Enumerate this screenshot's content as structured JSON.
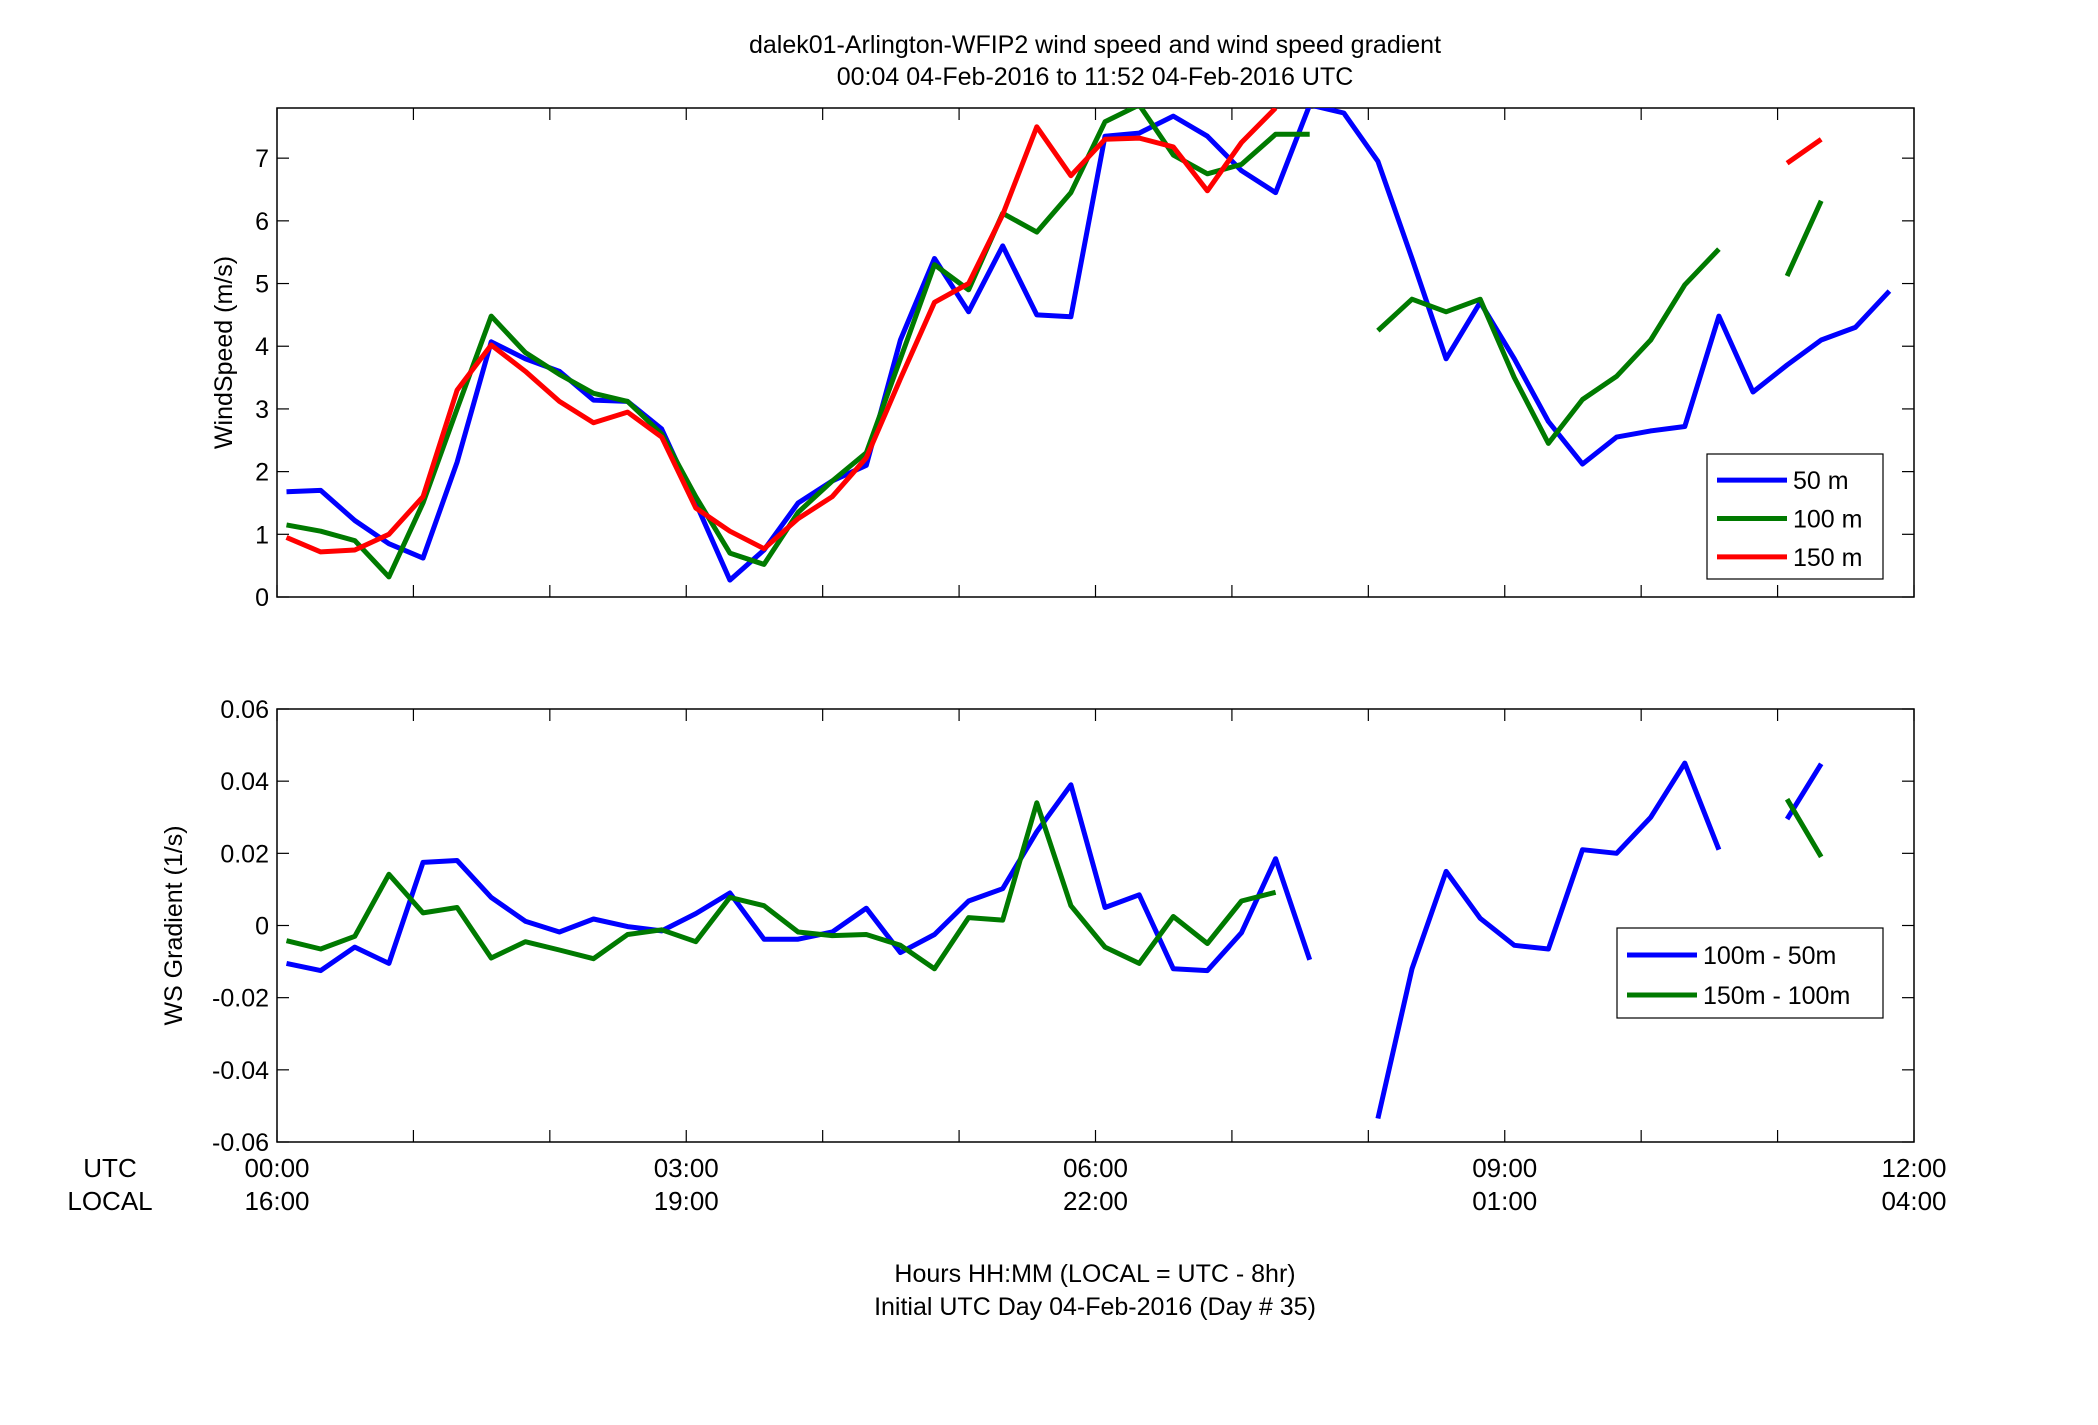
{
  "figure": {
    "title_line1": "dalek01-Arlington-WFIP2  wind speed and wind speed gradient",
    "title_line2": "00:04 04-Feb-2016 to 11:52 04-Feb-2016  UTC",
    "xlabel_line1": "Hours HH:MM  (LOCAL = UTC - 8hr)",
    "xlabel_line2": "Initial UTC Day 04-Feb-2016 (Day # 35)",
    "utc_label": "UTC",
    "local_label": "LOCAL",
    "utc_ticks": [
      "00:00",
      "03:00",
      "06:00",
      "09:00",
      "12:00"
    ],
    "local_ticks": [
      "16:00",
      "19:00",
      "22:00",
      "01:00",
      "04:00"
    ]
  },
  "chart_data": [
    {
      "type": "line",
      "ylabel": "WindSpeed (m/s)",
      "xlim": [
        0,
        12
      ],
      "ylim": [
        0,
        7.8
      ],
      "yticks": [
        0,
        1,
        2,
        3,
        4,
        5,
        6,
        7
      ],
      "ytick_labels": [
        "0",
        "1",
        "2",
        "3",
        "4",
        "5",
        "6",
        "7"
      ],
      "legend_position": "lower-right",
      "series": [
        {
          "name": "50 m",
          "color": "#0000ff",
          "points": [
            [
              0.07,
              1.68
            ],
            [
              0.32,
              1.7
            ],
            [
              0.57,
              1.22
            ],
            [
              0.82,
              0.85
            ],
            [
              1.07,
              0.62
            ],
            [
              1.32,
              2.15
            ],
            [
              1.57,
              4.07
            ],
            [
              1.82,
              3.8
            ],
            [
              2.07,
              3.6
            ],
            [
              2.32,
              3.14
            ],
            [
              2.57,
              3.12
            ],
            [
              2.82,
              2.68
            ],
            [
              3.07,
              1.5
            ],
            [
              3.32,
              0.27
            ],
            [
              3.57,
              0.75
            ],
            [
              3.82,
              1.5
            ],
            [
              4.07,
              1.85
            ],
            [
              4.32,
              2.1
            ],
            [
              4.57,
              4.1
            ],
            [
              4.82,
              5.4
            ],
            [
              5.07,
              4.55
            ],
            [
              5.32,
              5.6
            ],
            [
              5.57,
              4.5
            ],
            [
              5.82,
              4.47
            ],
            [
              6.07,
              7.35
            ],
            [
              6.32,
              7.4
            ],
            [
              6.57,
              7.67
            ],
            [
              6.82,
              7.35
            ],
            [
              7.07,
              6.8
            ],
            [
              7.32,
              6.45
            ],
            [
              7.57,
              7.85
            ],
            [
              7.82,
              7.72
            ],
            [
              8.07,
              6.95
            ],
            [
              8.32,
              5.4
            ],
            [
              8.57,
              3.8
            ],
            [
              8.82,
              4.7
            ],
            [
              9.07,
              3.8
            ],
            [
              9.32,
              2.8
            ],
            [
              9.57,
              2.12
            ],
            [
              9.82,
              2.55
            ],
            [
              10.07,
              2.65
            ],
            [
              10.32,
              2.72
            ],
            [
              10.57,
              4.48
            ],
            [
              10.82,
              3.27
            ],
            [
              11.07,
              3.7
            ],
            [
              11.32,
              4.1
            ],
            [
              11.57,
              4.3
            ],
            [
              11.82,
              4.88
            ]
          ]
        },
        {
          "name": "100 m",
          "color": "#007a00",
          "points": [
            [
              0.07,
              1.15
            ],
            [
              0.32,
              1.05
            ],
            [
              0.57,
              0.9
            ],
            [
              0.82,
              0.32
            ],
            [
              1.07,
              1.5
            ],
            [
              1.32,
              3.0
            ],
            [
              1.57,
              4.48
            ],
            [
              1.82,
              3.9
            ],
            [
              2.07,
              3.55
            ],
            [
              2.32,
              3.25
            ],
            [
              2.57,
              3.12
            ],
            [
              2.82,
              2.6
            ],
            [
              3.07,
              1.6
            ],
            [
              3.32,
              0.7
            ],
            [
              3.57,
              0.52
            ],
            [
              3.82,
              1.35
            ],
            [
              4.07,
              1.85
            ],
            [
              4.32,
              2.3
            ],
            [
              4.57,
              3.8
            ],
            [
              4.82,
              5.3
            ],
            [
              5.07,
              4.9
            ],
            [
              5.32,
              6.12
            ],
            [
              5.57,
              5.82
            ],
            [
              5.82,
              6.45
            ],
            [
              6.07,
              7.58
            ],
            [
              6.32,
              7.85
            ],
            [
              6.57,
              7.05
            ],
            [
              6.82,
              6.75
            ],
            [
              7.07,
              6.9
            ],
            [
              7.32,
              7.38
            ],
            [
              7.57,
              7.38
            ],
            [
              7.82,
              null
            ],
            [
              8.07,
              4.25
            ],
            [
              8.32,
              4.75
            ],
            [
              8.57,
              4.55
            ],
            [
              8.82,
              4.75
            ],
            [
              9.07,
              3.5
            ],
            [
              9.32,
              2.45
            ],
            [
              9.57,
              3.15
            ],
            [
              9.82,
              3.52
            ],
            [
              10.07,
              4.1
            ],
            [
              10.32,
              4.98
            ],
            [
              10.57,
              5.55
            ],
            [
              10.82,
              null
            ],
            [
              11.07,
              5.12
            ],
            [
              11.32,
              6.32
            ]
          ]
        },
        {
          "name": "150 m",
          "color": "#ff0000",
          "points": [
            [
              0.07,
              0.95
            ],
            [
              0.32,
              0.72
            ],
            [
              0.57,
              0.75
            ],
            [
              0.82,
              1.0
            ],
            [
              1.07,
              1.6
            ],
            [
              1.32,
              3.3
            ],
            [
              1.57,
              4.02
            ],
            [
              1.82,
              3.6
            ],
            [
              2.07,
              3.12
            ],
            [
              2.32,
              2.78
            ],
            [
              2.57,
              2.95
            ],
            [
              2.82,
              2.55
            ],
            [
              3.07,
              1.42
            ],
            [
              3.32,
              1.05
            ],
            [
              3.57,
              0.77
            ],
            [
              3.82,
              1.25
            ],
            [
              4.07,
              1.6
            ],
            [
              4.32,
              2.22
            ],
            [
              4.57,
              3.48
            ],
            [
              4.82,
              4.7
            ],
            [
              5.07,
              5.0
            ],
            [
              5.32,
              6.1
            ],
            [
              5.57,
              7.5
            ],
            [
              5.82,
              6.72
            ],
            [
              6.07,
              7.3
            ],
            [
              6.32,
              7.32
            ],
            [
              6.57,
              7.18
            ],
            [
              6.82,
              6.48
            ],
            [
              7.07,
              7.25
            ],
            [
              7.32,
              7.8
            ],
            [
              7.57,
              null
            ],
            [
              7.82,
              null
            ],
            [
              8.07,
              null
            ],
            [
              8.32,
              null
            ],
            [
              8.57,
              null
            ],
            [
              8.82,
              null
            ],
            [
              9.07,
              null
            ],
            [
              9.32,
              null
            ],
            [
              9.57,
              null
            ],
            [
              9.82,
              null
            ],
            [
              10.07,
              null
            ],
            [
              10.32,
              null
            ],
            [
              10.57,
              null
            ],
            [
              10.82,
              null
            ],
            [
              11.07,
              6.92
            ],
            [
              11.32,
              7.3
            ]
          ]
        }
      ]
    },
    {
      "type": "line",
      "ylabel": "WS Gradient (1/s)",
      "xlim": [
        0,
        12
      ],
      "ylim": [
        -0.06,
        0.06
      ],
      "yticks": [
        -0.06,
        -0.04,
        -0.02,
        0,
        0.02,
        0.04,
        0.06
      ],
      "ytick_labels": [
        "-0.06",
        "-0.04",
        "-0.02",
        "0",
        "0.02",
        "0.04",
        "0.06"
      ],
      "legend_position": "lower-right",
      "series": [
        {
          "name": "100m - 50m",
          "color": "#0000ff",
          "points": [
            [
              0.07,
              -0.0105
            ],
            [
              0.32,
              -0.0125
            ],
            [
              0.57,
              -0.006
            ],
            [
              0.82,
              -0.0105
            ],
            [
              1.07,
              0.0175
            ],
            [
              1.32,
              0.018
            ],
            [
              1.57,
              0.0078
            ],
            [
              1.82,
              0.0012
            ],
            [
              2.07,
              -0.0018
            ],
            [
              2.32,
              0.0018
            ],
            [
              2.57,
              -0.0003
            ],
            [
              2.82,
              -0.0015
            ],
            [
              3.07,
              0.0033
            ],
            [
              3.32,
              0.009
            ],
            [
              3.57,
              -0.0038
            ],
            [
              3.82,
              -0.0038
            ],
            [
              4.07,
              -0.0018
            ],
            [
              4.32,
              0.0048
            ],
            [
              4.57,
              -0.0075
            ],
            [
              4.82,
              -0.0025
            ],
            [
              5.07,
              0.0068
            ],
            [
              5.32,
              0.0102
            ],
            [
              5.57,
              0.026
            ],
            [
              5.82,
              0.039
            ],
            [
              6.07,
              0.005
            ],
            [
              6.32,
              0.0085
            ],
            [
              6.57,
              -0.012
            ],
            [
              6.82,
              -0.0125
            ],
            [
              7.07,
              -0.002
            ],
            [
              7.32,
              0.0185
            ],
            [
              7.57,
              -0.0095
            ],
            [
              7.82,
              null
            ],
            [
              8.07,
              -0.0535
            ],
            [
              8.32,
              -0.012
            ],
            [
              8.57,
              0.015
            ],
            [
              8.82,
              0.002
            ],
            [
              9.07,
              -0.0055
            ],
            [
              9.32,
              -0.0065
            ],
            [
              9.57,
              0.021
            ],
            [
              9.82,
              0.02
            ],
            [
              10.07,
              0.03
            ],
            [
              10.32,
              0.045
            ],
            [
              10.57,
              0.021
            ],
            [
              10.82,
              null
            ],
            [
              11.07,
              0.0295
            ],
            [
              11.32,
              0.0448
            ]
          ]
        },
        {
          "name": "150m - 100m",
          "color": "#007a00",
          "points": [
            [
              0.07,
              -0.0042
            ],
            [
              0.32,
              -0.0065
            ],
            [
              0.57,
              -0.003
            ],
            [
              0.82,
              0.0142
            ],
            [
              1.07,
              0.0035
            ],
            [
              1.32,
              0.005
            ],
            [
              1.57,
              -0.009
            ],
            [
              1.82,
              -0.0045
            ],
            [
              2.07,
              -0.0068
            ],
            [
              2.32,
              -0.0092
            ],
            [
              2.57,
              -0.0025
            ],
            [
              2.82,
              -0.0012
            ],
            [
              3.07,
              -0.0045
            ],
            [
              3.32,
              0.0078
            ],
            [
              3.57,
              0.0055
            ],
            [
              3.82,
              -0.0018
            ],
            [
              4.07,
              -0.0028
            ],
            [
              4.32,
              -0.0025
            ],
            [
              4.57,
              -0.0055
            ],
            [
              4.82,
              -0.012
            ],
            [
              5.07,
              0.0022
            ],
            [
              5.32,
              0.0015
            ],
            [
              5.57,
              0.034
            ],
            [
              5.82,
              0.0055
            ],
            [
              6.07,
              -0.006
            ],
            [
              6.32,
              -0.0105
            ],
            [
              6.57,
              0.0025
            ],
            [
              6.82,
              -0.005
            ],
            [
              7.07,
              0.0068
            ],
            [
              7.32,
              0.0092
            ],
            [
              7.57,
              null
            ],
            [
              7.82,
              null
            ],
            [
              8.07,
              null
            ],
            [
              8.32,
              null
            ],
            [
              8.57,
              null
            ],
            [
              8.82,
              null
            ],
            [
              9.07,
              null
            ],
            [
              9.32,
              null
            ],
            [
              9.57,
              null
            ],
            [
              9.82,
              null
            ],
            [
              10.07,
              null
            ],
            [
              10.32,
              null
            ],
            [
              10.57,
              null
            ],
            [
              10.82,
              null
            ],
            [
              11.07,
              0.035
            ],
            [
              11.32,
              0.019
            ]
          ]
        }
      ]
    }
  ]
}
